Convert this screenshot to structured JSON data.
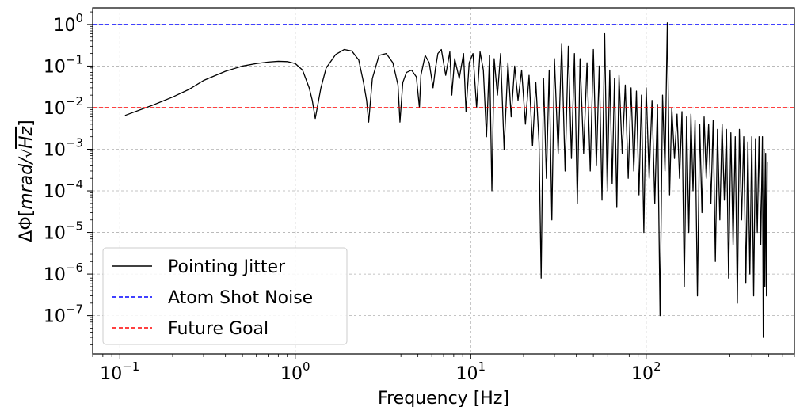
{
  "chart_data": {
    "type": "line",
    "xscale": "log",
    "yscale": "log",
    "xlim": [
      0.07,
      700
    ],
    "ylim": [
      1.2e-08,
      2.5
    ],
    "xlabel": "Frequency [Hz]",
    "ylabel_prefix": "ΔΦ[",
    "ylabel_math": "mrad/",
    "ylabel_sqrt": "Hz",
    "ylabel_suffix": "]",
    "grid": true,
    "legend_position": "lower-left",
    "x_ticks": [
      {
        "base": "10",
        "exp": "−1",
        "value": 0.1
      },
      {
        "base": "10",
        "exp": "0",
        "value": 1
      },
      {
        "base": "10",
        "exp": "1",
        "value": 10
      },
      {
        "base": "10",
        "exp": "2",
        "value": 100
      }
    ],
    "y_ticks": [
      {
        "base": "10",
        "exp": "0",
        "value": 1
      },
      {
        "base": "10",
        "exp": "−1",
        "value": 0.1
      },
      {
        "base": "10",
        "exp": "−2",
        "value": 0.01
      },
      {
        "base": "10",
        "exp": "−3",
        "value": 0.001
      },
      {
        "base": "10",
        "exp": "−4",
        "value": 0.0001
      },
      {
        "base": "10",
        "exp": "−5",
        "value": 1e-05
      },
      {
        "base": "10",
        "exp": "−6",
        "value": 1e-06
      },
      {
        "base": "10",
        "exp": "−7",
        "value": 1e-07
      }
    ],
    "series": [
      {
        "name": "Pointing Jitter",
        "color": "#000000",
        "style": "solid",
        "x": [
          0.107,
          0.15,
          0.2,
          0.25,
          0.3,
          0.4,
          0.5,
          0.6,
          0.7,
          0.8,
          0.9,
          1.0,
          1.1,
          1.2,
          1.25,
          1.3,
          1.4,
          1.5,
          1.7,
          1.9,
          2.1,
          2.3,
          2.45,
          2.55,
          2.62,
          2.75,
          3.0,
          3.3,
          3.6,
          3.85,
          3.95,
          4.1,
          4.3,
          4.6,
          4.9,
          5.1,
          5.2,
          5.5,
          5.8,
          6.1,
          6.3,
          6.5,
          6.8,
          7.2,
          7.6,
          7.8,
          8.1,
          8.6,
          9.1,
          9.4,
          9.8,
          10.3,
          10.8,
          11.3,
          11.8,
          12.3,
          12.8,
          13.2,
          13.6,
          14.2,
          14.8,
          15.5,
          16.3,
          17.0,
          17.8,
          18.6,
          19.5,
          20.5,
          21.5,
          22.5,
          23.5,
          24.5,
          25.2,
          26,
          27,
          28,
          29,
          30,
          31.5,
          33,
          34.5,
          36,
          37.5,
          39,
          40.5,
          42,
          44,
          46,
          48,
          50,
          52,
          54,
          56,
          58,
          60,
          62,
          64,
          66,
          68,
          70,
          73,
          76,
          79,
          82,
          85,
          88,
          91,
          94,
          97,
          100,
          104,
          108,
          112,
          116,
          120,
          124,
          128,
          132,
          136,
          140,
          145,
          150,
          155,
          160,
          165,
          170,
          175,
          180,
          185,
          190,
          196,
          202,
          208,
          214,
          220,
          227,
          234,
          241,
          248,
          255,
          263,
          271,
          279,
          287,
          295,
          304,
          313,
          322,
          331,
          340,
          350,
          360,
          370,
          380,
          390,
          400,
          410,
          420,
          430,
          440,
          450,
          460,
          465,
          470,
          475,
          480,
          485,
          490
        ],
        "y": [
          0.0065,
          0.011,
          0.018,
          0.028,
          0.045,
          0.075,
          0.1,
          0.115,
          0.125,
          0.13,
          0.128,
          0.115,
          0.08,
          0.03,
          0.015,
          0.0055,
          0.03,
          0.09,
          0.19,
          0.25,
          0.23,
          0.14,
          0.04,
          0.015,
          0.0045,
          0.05,
          0.18,
          0.2,
          0.12,
          0.035,
          0.0045,
          0.04,
          0.07,
          0.08,
          0.055,
          0.01,
          0.06,
          0.18,
          0.12,
          0.03,
          0.09,
          0.2,
          0.25,
          0.06,
          0.22,
          0.02,
          0.15,
          0.05,
          0.2,
          0.008,
          0.12,
          0.2,
          0.01,
          0.22,
          0.08,
          0.002,
          0.18,
          0.0001,
          0.15,
          0.02,
          0.2,
          0.001,
          0.12,
          0.006,
          0.1,
          0.015,
          0.08,
          0.004,
          0.06,
          0.0012,
          0.04,
          0.0015,
          8e-07,
          0.05,
          0.0002,
          0.08,
          2e-05,
          0.15,
          0.0008,
          0.35,
          0.0003,
          0.3,
          0.0006,
          0.2,
          5e-05,
          0.15,
          0.0008,
          0.12,
          0.0003,
          0.25,
          0.0004,
          0.1,
          6e-05,
          0.6,
          0.0001,
          0.08,
          0.00015,
          0.05,
          4e-05,
          0.06,
          0.0008,
          0.035,
          0.0002,
          0.03,
          0.0003,
          0.025,
          8e-05,
          0.02,
          1e-05,
          0.03,
          0.0002,
          0.015,
          5e-05,
          0.012,
          1e-07,
          0.02,
          0.0003,
          1.1,
          8e-05,
          0.01,
          0.0006,
          0.007,
          0.0002,
          0.008,
          5e-07,
          0.006,
          1e-05,
          0.007,
          0.0001,
          0.005,
          3e-07,
          0.004,
          3e-05,
          0.006,
          0.0002,
          0.004,
          5e-05,
          0.005,
          2e-06,
          0.003,
          2e-05,
          0.004,
          6e-05,
          0.003,
          8e-07,
          0.0025,
          5e-06,
          0.002,
          2e-07,
          0.003,
          2e-05,
          0.002,
          6e-07,
          0.0015,
          1e-06,
          0.002,
          3e-07,
          0.0018,
          1e-05,
          0.002,
          5e-06,
          0.002,
          3e-08,
          0.001,
          5e-07,
          0.0008,
          3e-07,
          0.0005
        ]
      },
      {
        "name": "Atom Shot Noise",
        "color": "#0000ff",
        "style": "dashed",
        "y_const": 1.0
      },
      {
        "name": "Future Goal",
        "color": "#ff0000",
        "style": "dashed",
        "y_const": 0.01
      }
    ]
  }
}
